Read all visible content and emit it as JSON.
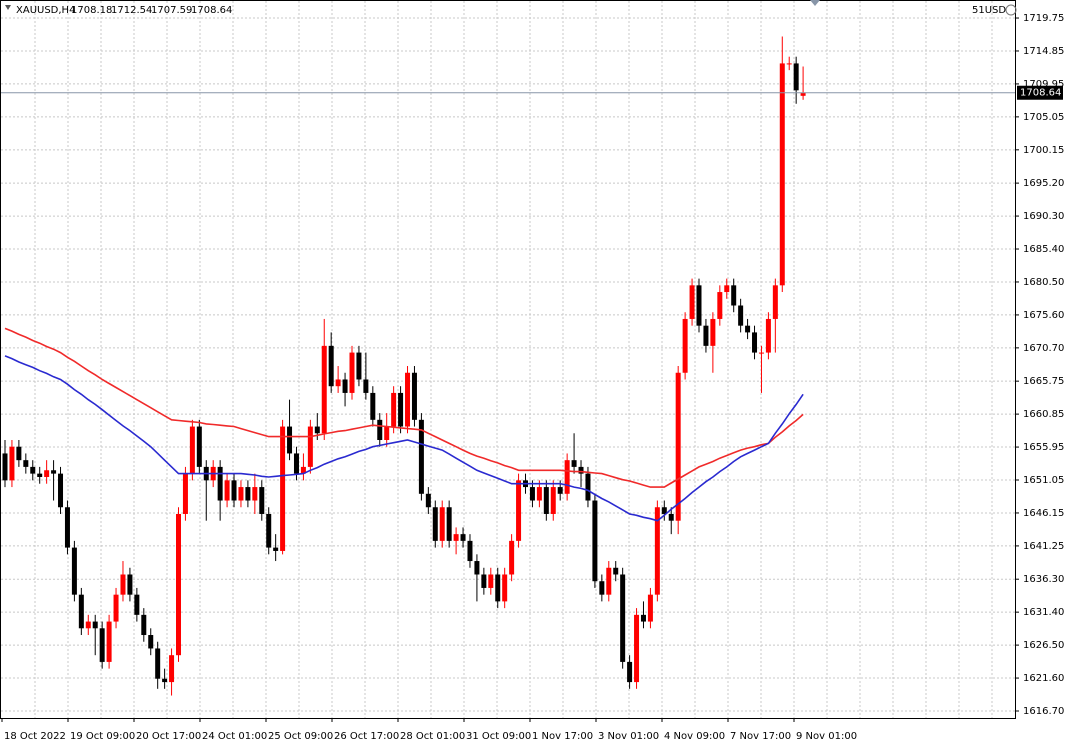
{
  "chart_data": {
    "type": "candlestick",
    "title": "XAUUSD,H4",
    "symbol_tag": "51USD",
    "up_color": "#ff0000",
    "down_color": "#000000",
    "ylim": [
      1615.66,
      1722.43
    ],
    "yticks": [
      {
        "value": 1719.75,
        "label": "1719.75"
      },
      {
        "value": 1714.85,
        "label": "1714.85"
      },
      {
        "value": 1709.95,
        "label": "1709.95"
      },
      {
        "value": 1705.05,
        "label": "1705.05"
      },
      {
        "value": 1700.15,
        "label": "1700.15"
      },
      {
        "value": 1695.2,
        "label": "1695.20"
      },
      {
        "value": 1690.3,
        "label": "1690.30"
      },
      {
        "value": 1685.4,
        "label": "1685.40"
      },
      {
        "value": 1680.5,
        "label": "1680.50"
      },
      {
        "value": 1675.6,
        "label": "1675.60"
      },
      {
        "value": 1670.7,
        "label": "1670.70"
      },
      {
        "value": 1665.75,
        "label": "1665.75"
      },
      {
        "value": 1660.85,
        "label": "1660.85"
      },
      {
        "value": 1655.95,
        "label": "1655.95"
      },
      {
        "value": 1651.05,
        "label": "1651.05"
      },
      {
        "value": 1646.15,
        "label": "1646.15"
      },
      {
        "value": 1641.25,
        "label": "1641.25"
      },
      {
        "value": 1636.3,
        "label": "1636.30"
      },
      {
        "value": 1631.4,
        "label": "1631.40"
      },
      {
        "value": 1626.5,
        "label": "1626.50"
      },
      {
        "value": 1621.6,
        "label": "1621.60"
      },
      {
        "value": 1616.7,
        "label": "1616.70"
      }
    ],
    "grid": true,
    "xlabels": [
      "18 Oct 2022",
      "19 Oct 09:00",
      "20 Oct 17:00",
      "24 Oct 01:00",
      "25 Oct 09:00",
      "26 Oct 17:00",
      "28 Oct 01:00",
      "31 Oct 09:00",
      "1 Nov 17:00",
      "3 Nov 01:00",
      "4 Nov 09:00",
      "7 Nov 17:00",
      "9 Nov 01:00"
    ],
    "ohlc": [
      [
        1655,
        1657,
        1650,
        1651
      ],
      [
        1651,
        1657,
        1650,
        1656
      ],
      [
        1656,
        1657,
        1653,
        1654
      ],
      [
        1654,
        1655,
        1652,
        1653
      ],
      [
        1653,
        1654,
        1651,
        1652
      ],
      [
        1652,
        1653,
        1650.5,
        1651.5
      ],
      [
        1651.5,
        1654,
        1650.5,
        1652.5
      ],
      [
        1652.5,
        1654,
        1648,
        1652
      ],
      [
        1652,
        1653,
        1646,
        1647
      ],
      [
        1647,
        1648,
        1640,
        1641
      ],
      [
        1641,
        1642,
        1633,
        1634
      ],
      [
        1634,
        1635,
        1628,
        1629
      ],
      [
        1629,
        1631,
        1628,
        1630
      ],
      [
        1630,
        1631,
        1625,
        1629
      ],
      [
        1629,
        1630,
        1623,
        1624
      ],
      [
        1624,
        1631,
        1623,
        1630
      ],
      [
        1630,
        1635,
        1629,
        1634
      ],
      [
        1634,
        1639,
        1633,
        1637
      ],
      [
        1637,
        1638,
        1633,
        1634
      ],
      [
        1634,
        1635,
        1630,
        1631
      ],
      [
        1631,
        1632,
        1627,
        1628
      ],
      [
        1628,
        1629,
        1625,
        1626
      ],
      [
        1626,
        1627,
        1620,
        1621.5
      ],
      [
        1621.5,
        1623,
        1620,
        1621
      ],
      [
        1621,
        1626,
        1619,
        1625
      ],
      [
        1625,
        1647,
        1624,
        1646
      ],
      [
        1646,
        1653,
        1645,
        1652
      ],
      [
        1652,
        1660,
        1651,
        1659
      ],
      [
        1659,
        1660,
        1652,
        1653
      ],
      [
        1653,
        1654,
        1645,
        1651
      ],
      [
        1651,
        1654,
        1650,
        1653
      ],
      [
        1653,
        1654,
        1645,
        1648
      ],
      [
        1648,
        1652,
        1647,
        1651
      ],
      [
        1651,
        1652,
        1647,
        1648
      ],
      [
        1648,
        1651,
        1647,
        1650
      ],
      [
        1650,
        1651,
        1647,
        1648
      ],
      [
        1648,
        1652,
        1646,
        1650
      ],
      [
        1650,
        1651,
        1645,
        1646
      ],
      [
        1646,
        1647,
        1640,
        1641
      ],
      [
        1641,
        1643,
        1639,
        1640.5
      ],
      [
        1640.5,
        1660,
        1640,
        1659
      ],
      [
        1659,
        1663,
        1654,
        1655
      ],
      [
        1655,
        1656,
        1651,
        1652
      ],
      [
        1652,
        1655,
        1651,
        1653
      ],
      [
        1653,
        1660,
        1652,
        1659
      ],
      [
        1659,
        1661,
        1657,
        1658
      ],
      [
        1658,
        1675,
        1657,
        1671
      ],
      [
        1671,
        1673,
        1664,
        1665
      ],
      [
        1665,
        1668,
        1664,
        1666
      ],
      [
        1666,
        1667,
        1662,
        1664
      ],
      [
        1664,
        1671,
        1663,
        1670
      ],
      [
        1670,
        1671,
        1665,
        1666
      ],
      [
        1666,
        1670,
        1663,
        1664
      ],
      [
        1664,
        1665,
        1659,
        1660
      ],
      [
        1660,
        1661,
        1656,
        1657
      ],
      [
        1657,
        1661,
        1656,
        1659
      ],
      [
        1659,
        1665,
        1658,
        1664
      ],
      [
        1664,
        1665,
        1658,
        1659
      ],
      [
        1659,
        1668,
        1658,
        1667
      ],
      [
        1667,
        1668,
        1659,
        1660
      ],
      [
        1660,
        1661,
        1648,
        1649
      ],
      [
        1649,
        1650,
        1646,
        1647
      ],
      [
        1647,
        1648,
        1641,
        1642
      ],
      [
        1642,
        1648,
        1641,
        1647
      ],
      [
        1647,
        1648,
        1641,
        1642
      ],
      [
        1642,
        1644,
        1640,
        1643
      ],
      [
        1643,
        1644,
        1641,
        1642
      ],
      [
        1642,
        1643,
        1638,
        1639
      ],
      [
        1639,
        1640,
        1633,
        1637
      ],
      [
        1637,
        1638,
        1634,
        1635
      ],
      [
        1635,
        1638,
        1634,
        1637
      ],
      [
        1637,
        1638,
        1632,
        1633
      ],
      [
        1633,
        1638,
        1632,
        1637
      ],
      [
        1637,
        1643,
        1636,
        1642
      ],
      [
        1642,
        1652,
        1641,
        1651
      ],
      [
        1651,
        1652,
        1649,
        1650
      ],
      [
        1650,
        1651,
        1647,
        1648
      ],
      [
        1648,
        1651,
        1647,
        1650
      ],
      [
        1650,
        1651,
        1645,
        1646
      ],
      [
        1646,
        1651,
        1645,
        1650
      ],
      [
        1650,
        1651,
        1648,
        1649
      ],
      [
        1649,
        1655,
        1648,
        1654
      ],
      [
        1654,
        1658,
        1652,
        1653
      ],
      [
        1653,
        1654,
        1650,
        1652
      ],
      [
        1652,
        1653,
        1647,
        1648
      ],
      [
        1648,
        1649,
        1635,
        1636
      ],
      [
        1636,
        1637,
        1633,
        1634
      ],
      [
        1634,
        1639,
        1633,
        1638
      ],
      [
        1638,
        1639,
        1636,
        1637
      ],
      [
        1637,
        1638,
        1623,
        1624
      ],
      [
        1624,
        1625,
        1620,
        1621
      ],
      [
        1621,
        1632,
        1620,
        1631
      ],
      [
        1631,
        1633,
        1629,
        1630
      ],
      [
        1630,
        1635,
        1629,
        1634
      ],
      [
        1634,
        1648,
        1633,
        1647
      ],
      [
        1647,
        1648,
        1645,
        1646
      ],
      [
        1646,
        1647,
        1643,
        1645
      ],
      [
        1645,
        1668,
        1643,
        1667
      ],
      [
        1667,
        1676,
        1666,
        1675
      ],
      [
        1675,
        1681,
        1674,
        1680
      ],
      [
        1680,
        1681,
        1673,
        1674
      ],
      [
        1674,
        1675,
        1670,
        1671
      ],
      [
        1671,
        1676,
        1667,
        1675
      ],
      [
        1675,
        1680,
        1674,
        1679
      ],
      [
        1679,
        1681,
        1678,
        1680
      ],
      [
        1680,
        1681,
        1676,
        1677
      ],
      [
        1677,
        1678,
        1673,
        1674
      ],
      [
        1674,
        1675,
        1672,
        1673
      ],
      [
        1673,
        1674,
        1669,
        1670
      ],
      [
        1670,
        1671,
        1664,
        1670
      ],
      [
        1670,
        1676,
        1669,
        1675
      ],
      [
        1675,
        1681,
        1670,
        1680
      ],
      [
        1680,
        1717,
        1679,
        1713
      ],
      [
        1713,
        1714,
        1712,
        1713
      ],
      [
        1713,
        1714,
        1707,
        1709
      ],
      [
        1708.18,
        1712.54,
        1707.59,
        1708.64
      ]
    ],
    "series": [
      {
        "color": "#f02a2a",
        "values": [
          1673.6,
          1673.2,
          1672.7,
          1672.3,
          1671.8,
          1671.4,
          1670.9,
          1670.5,
          1670.0,
          1669.3,
          1668.7,
          1668.0,
          1667.3,
          1666.7,
          1666.0,
          1665.4,
          1664.8,
          1664.2,
          1663.6,
          1663.0,
          1662.4,
          1661.8,
          1661.2,
          1660.6,
          1660.0,
          1659.9,
          1659.8,
          1659.7,
          1659.6,
          1659.4,
          1659.3,
          1659.2,
          1659.1,
          1659.0,
          1658.7,
          1658.4,
          1658.1,
          1657.8,
          1657.5,
          1657.5,
          1657.5,
          1657.5,
          1657.5,
          1657.5,
          1657.5,
          1657.7,
          1657.9,
          1658.1,
          1658.3,
          1658.4,
          1658.6,
          1658.8,
          1659.0,
          1659.2,
          1659.1,
          1659.0,
          1658.9,
          1658.8,
          1658.7,
          1658.6,
          1658.5,
          1658.0,
          1657.5,
          1657.0,
          1656.5,
          1656.0,
          1655.5,
          1655.0,
          1654.6,
          1654.3,
          1653.9,
          1653.6,
          1653.2,
          1652.9,
          1652.5,
          1652.5,
          1652.5,
          1652.5,
          1652.5,
          1652.5,
          1652.5,
          1652.4,
          1652.3,
          1652.3,
          1652.2,
          1652.1,
          1652.0,
          1651.7,
          1651.4,
          1651.1,
          1650.9,
          1650.6,
          1650.3,
          1650.0,
          1650.0,
          1650.0,
          1650.6,
          1651.2,
          1651.8,
          1652.4,
          1653.0,
          1653.4,
          1653.8,
          1654.3,
          1654.7,
          1655.1,
          1655.5,
          1655.8,
          1656.0,
          1656.3,
          1656.5,
          1657.4,
          1658.2,
          1659.1,
          1659.9,
          1660.8
        ]
      },
      {
        "color": "#2a2ad0",
        "values": [
          1669.5,
          1669.1,
          1668.6,
          1668.2,
          1667.8,
          1667.3,
          1666.9,
          1666.4,
          1666.0,
          1665.3,
          1664.5,
          1663.8,
          1663.0,
          1662.3,
          1661.5,
          1660.7,
          1659.9,
          1659.1,
          1658.4,
          1657.6,
          1656.8,
          1656.0,
          1655.0,
          1654.0,
          1653.0,
          1652.0,
          1652.0,
          1652.0,
          1652.0,
          1652.0,
          1652.0,
          1652.0,
          1652.0,
          1652.0,
          1652.0,
          1651.9,
          1651.8,
          1651.6,
          1651.5,
          1651.6,
          1651.7,
          1651.8,
          1651.9,
          1652.0,
          1652.5,
          1652.9,
          1653.4,
          1653.8,
          1654.2,
          1654.5,
          1654.9,
          1655.3,
          1655.6,
          1656.0,
          1656.2,
          1656.4,
          1656.6,
          1656.8,
          1657.0,
          1656.7,
          1656.4,
          1656.1,
          1655.8,
          1655.5,
          1654.9,
          1654.3,
          1653.7,
          1653.1,
          1652.5,
          1652.1,
          1651.7,
          1651.3,
          1650.9,
          1650.5,
          1650.5,
          1650.5,
          1650.5,
          1650.5,
          1650.5,
          1650.5,
          1650.5,
          1650.3,
          1650.0,
          1649.8,
          1649.5,
          1648.9,
          1648.3,
          1647.8,
          1647.2,
          1646.6,
          1646.0,
          1645.8,
          1645.5,
          1645.3,
          1645.0,
          1645.8,
          1646.7,
          1647.5,
          1648.3,
          1649.2,
          1650.0,
          1650.8,
          1651.5,
          1652.3,
          1653.0,
          1653.8,
          1654.5,
          1655.0,
          1655.5,
          1656.0,
          1656.5,
          1658.0,
          1659.4,
          1660.9,
          1662.3,
          1663.8
        ]
      }
    ]
  }
}
